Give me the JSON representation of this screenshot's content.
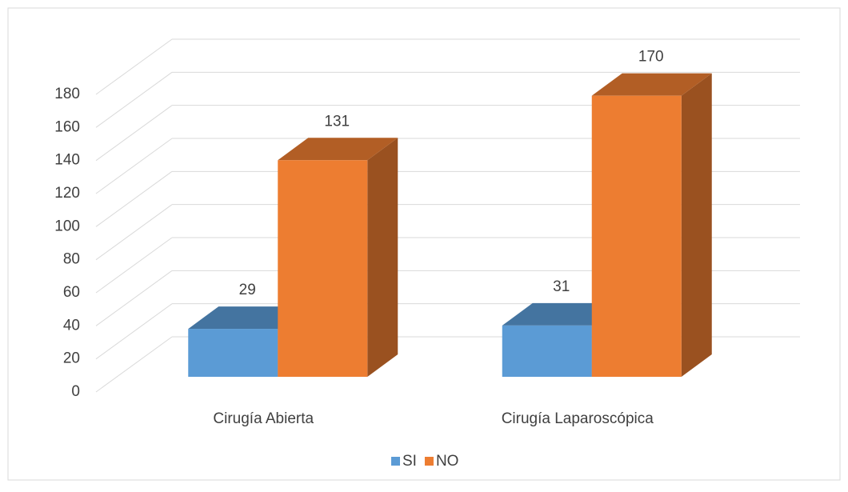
{
  "chart_data": {
    "type": "bar3d",
    "categories": [
      "Cirugía Abierta",
      "Cirugía Laparoscópica"
    ],
    "series": [
      {
        "name": "SI",
        "color": "#5b9bd5",
        "values": [
          29,
          31
        ]
      },
      {
        "name": "NO",
        "color": "#ed7d31",
        "values": [
          131,
          170
        ]
      }
    ],
    "ylim": [
      0,
      180
    ],
    "yticks": [
      0,
      20,
      40,
      60,
      80,
      100,
      120,
      140,
      160,
      180
    ],
    "grid": true,
    "legend": "bottom"
  }
}
